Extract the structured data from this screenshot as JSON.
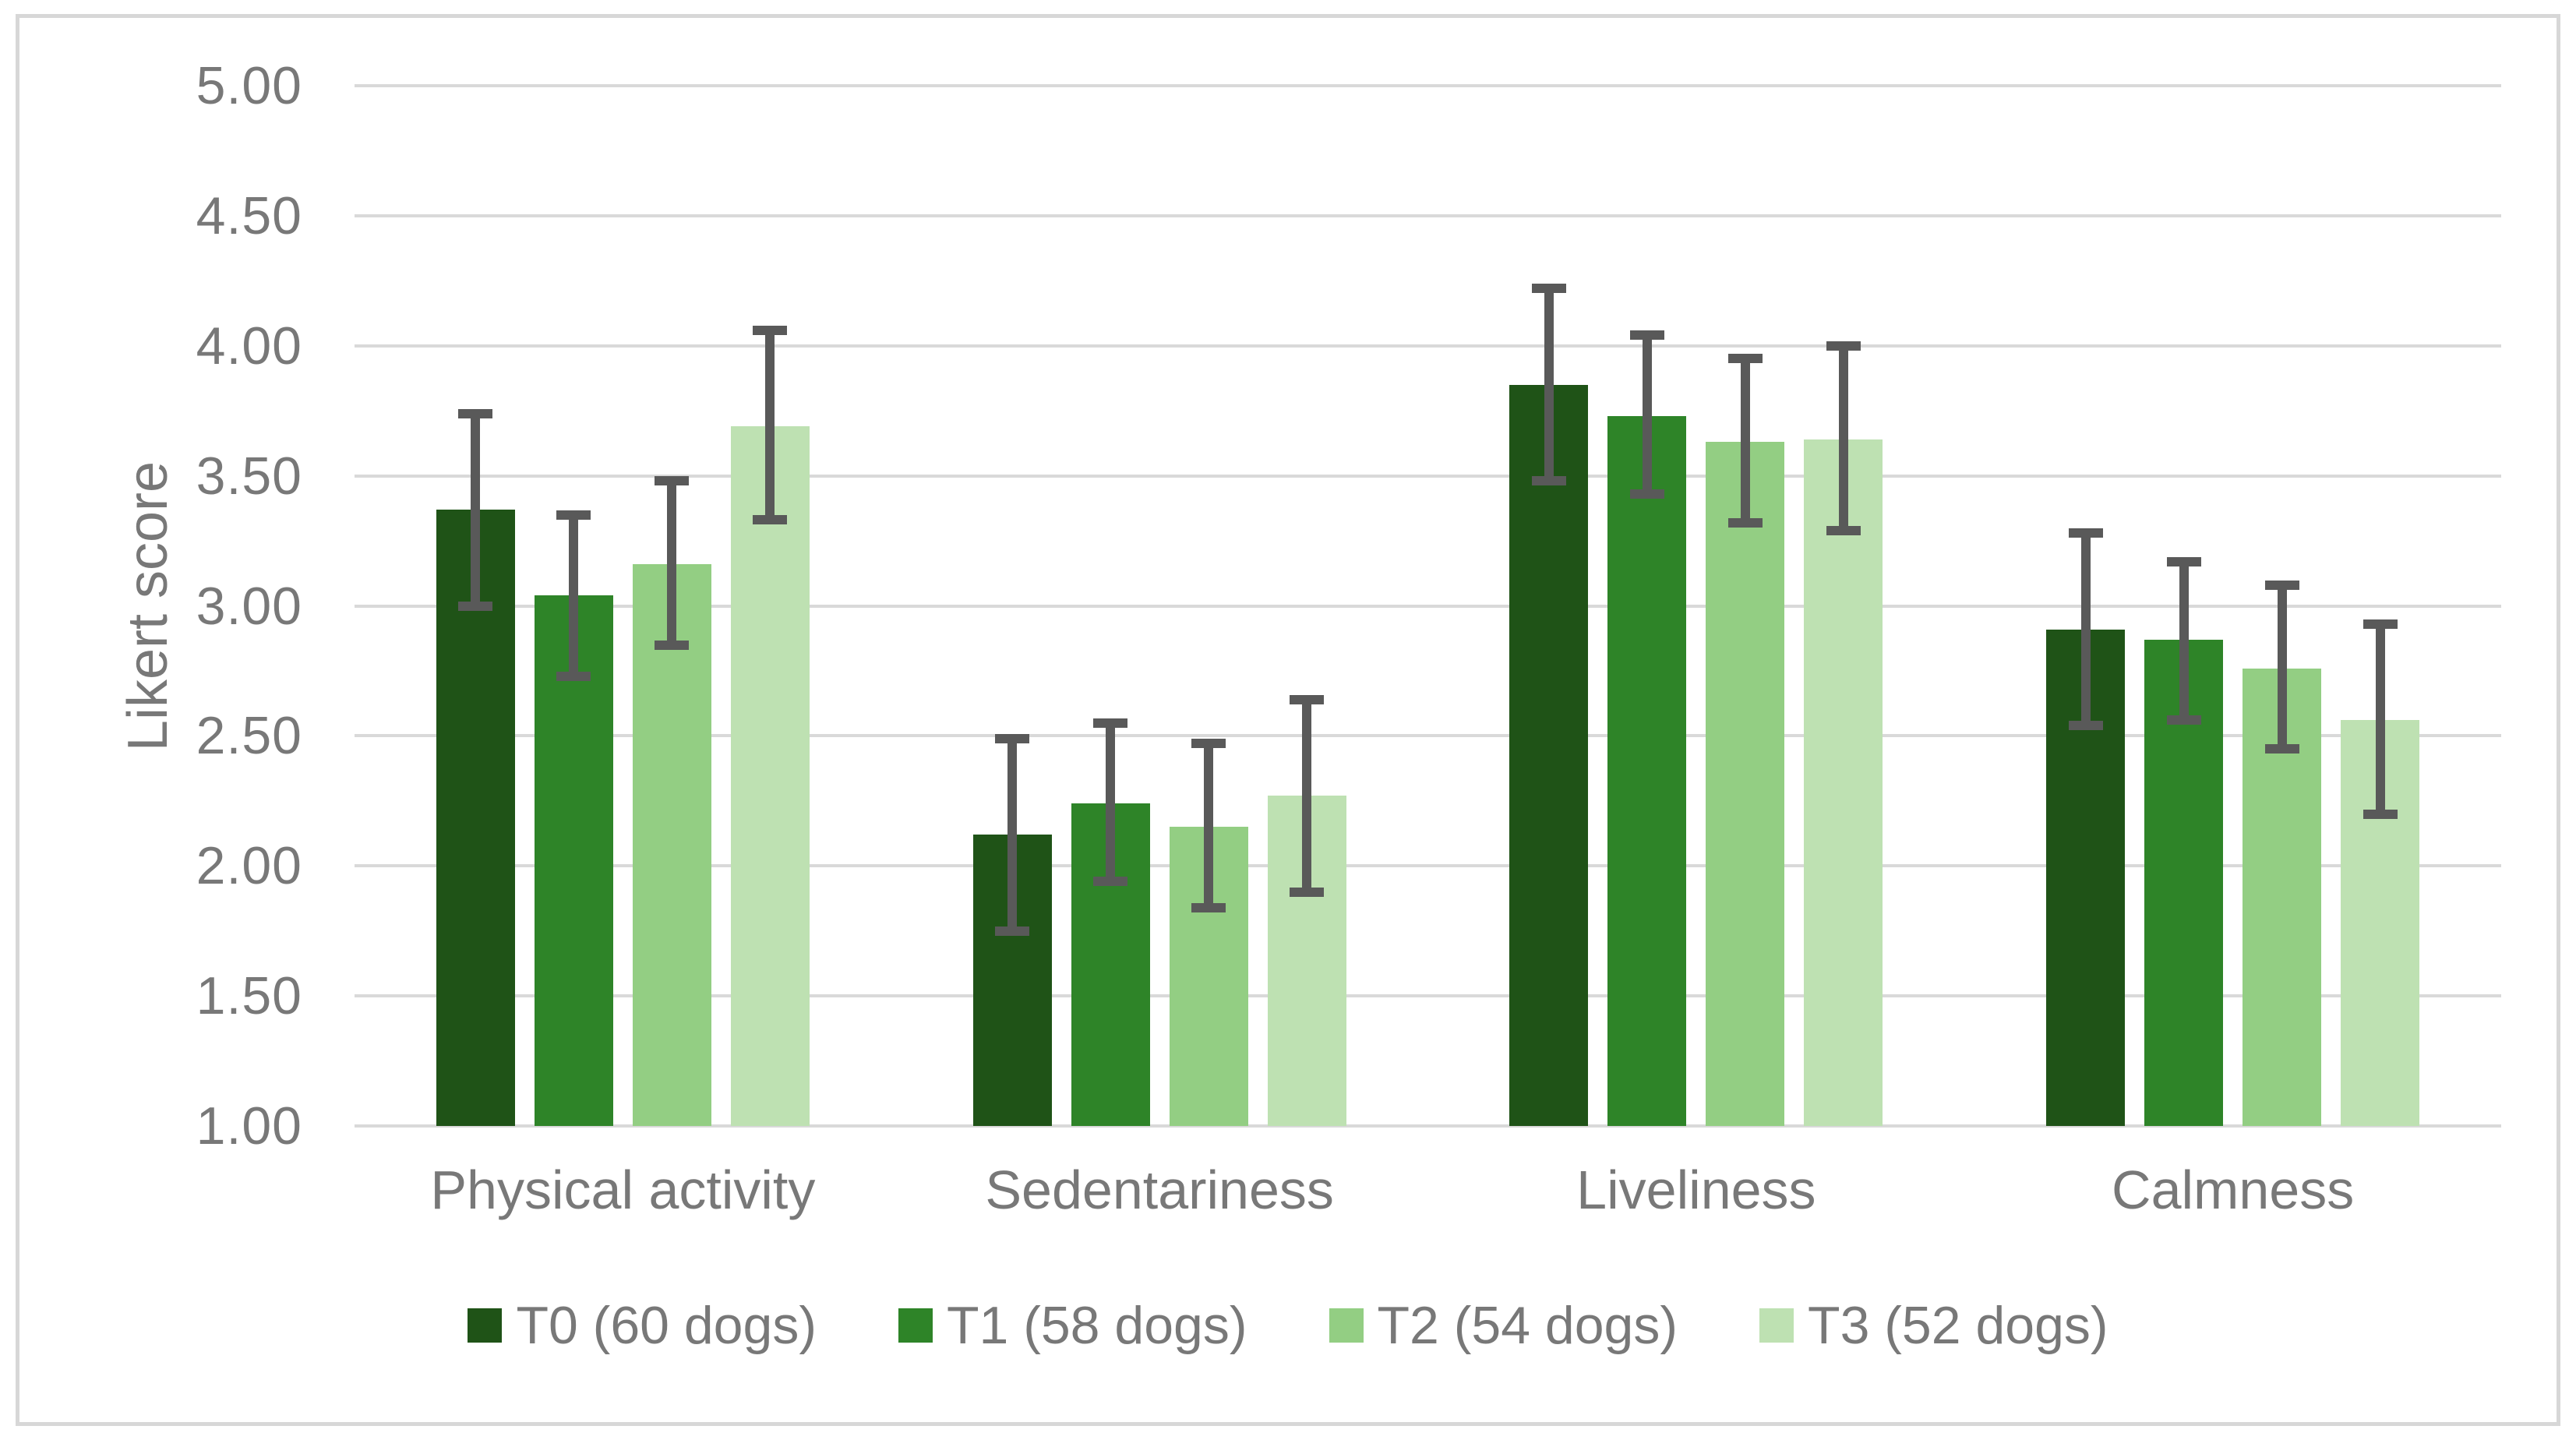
{
  "y_axis": {
    "title": "Likert score",
    "tick_labels": [
      "5.00",
      "4.50",
      "4.00",
      "3.50",
      "3.00",
      "2.50",
      "2.00",
      "1.50",
      "1.00"
    ],
    "min": 1.0,
    "max": 5.0,
    "step": 0.5
  },
  "colors": {
    "gridline": "#d9d9d9",
    "error_bar": "#595959",
    "text": "#787878",
    "frame_border": "#d7d7d7",
    "background": "#ffffff"
  },
  "chart_data": {
    "type": "bar",
    "title": "",
    "xlabel": "",
    "ylabel": "Likert score",
    "ylim": [
      1.0,
      5.0
    ],
    "grid": true,
    "legend_position": "bottom",
    "error_bars": true,
    "categories": [
      "Physical activity",
      "Sedentariness",
      "Liveliness",
      "Calmness"
    ],
    "series": [
      {
        "name": "T0 (60 dogs)",
        "color": "#1f5317",
        "values": [
          3.37,
          2.12,
          3.85,
          2.91
        ],
        "err_lo": [
          3.0,
          1.75,
          3.48,
          2.54
        ],
        "err_hi": [
          3.74,
          2.49,
          4.22,
          3.28
        ]
      },
      {
        "name": "T1 (58 dogs)",
        "color": "#2e8428",
        "values": [
          3.04,
          2.24,
          3.73,
          2.87
        ],
        "err_lo": [
          2.73,
          1.94,
          3.43,
          2.56
        ],
        "err_hi": [
          3.35,
          2.55,
          4.04,
          3.17
        ]
      },
      {
        "name": "T2 (54 dogs)",
        "color": "#93ce83",
        "values": [
          3.16,
          2.15,
          3.63,
          2.76
        ],
        "err_lo": [
          2.85,
          1.84,
          3.32,
          2.45
        ],
        "err_hi": [
          3.48,
          2.47,
          3.95,
          3.08
        ]
      },
      {
        "name": "T3 (52 dogs)",
        "color": "#bee1b2",
        "values": [
          3.69,
          2.27,
          3.64,
          2.56
        ],
        "err_lo": [
          3.33,
          1.9,
          3.29,
          2.2
        ],
        "err_hi": [
          4.06,
          2.64,
          4.0,
          2.93
        ]
      }
    ]
  }
}
